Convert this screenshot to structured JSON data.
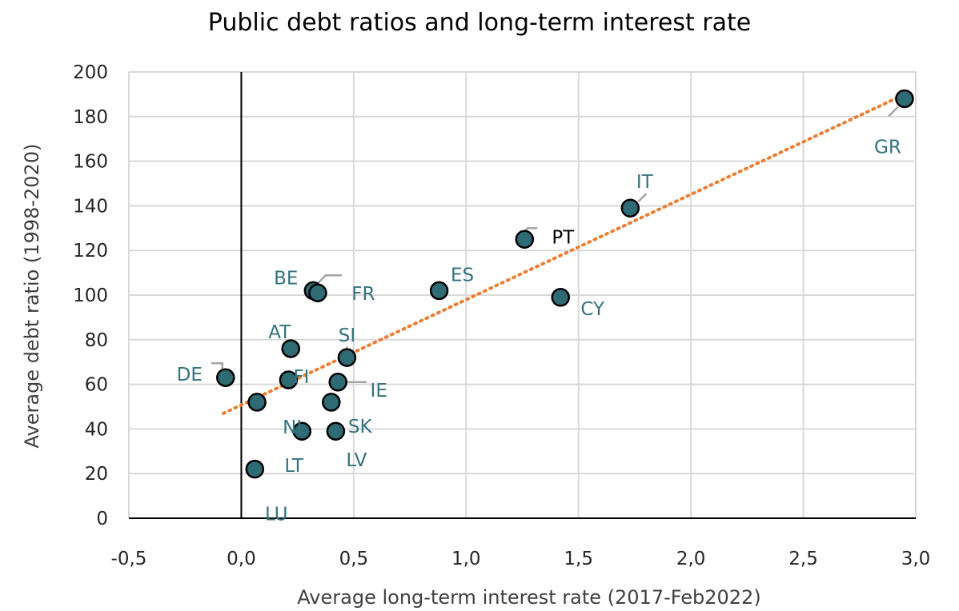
{
  "chart_data": {
    "type": "scatter",
    "title": "Public debt ratios and long-term interest rate",
    "xlabel": "Average long-term interest rate (2017-Feb2022)",
    "ylabel": "Average debt ratio (1998-2020)",
    "xlim": [
      -0.5,
      3.0
    ],
    "ylim": [
      0,
      200
    ],
    "x_ticks": [
      -0.5,
      0.0,
      0.5,
      1.0,
      1.5,
      2.0,
      2.5,
      3.0
    ],
    "x_tick_labels": [
      "-0,5",
      "0,0",
      "0,5",
      "1,0",
      "1,5",
      "2,0",
      "2,5",
      "3,0"
    ],
    "y_ticks": [
      0,
      20,
      40,
      60,
      80,
      100,
      120,
      140,
      160,
      180,
      200
    ],
    "y_tick_labels": [
      "0",
      "20",
      "40",
      "60",
      "80",
      "100",
      "120",
      "140",
      "160",
      "180",
      "200"
    ],
    "grid": true,
    "legend": "none",
    "points": [
      {
        "label": "DE",
        "x": -0.07,
        "y": 63
      },
      {
        "label": "NL",
        "x": 0.07,
        "y": 52
      },
      {
        "label": "LU",
        "x": 0.06,
        "y": 22
      },
      {
        "label": "AT",
        "x": 0.22,
        "y": 76
      },
      {
        "label": "FI",
        "x": 0.21,
        "y": 62
      },
      {
        "label": "LT",
        "x": 0.27,
        "y": 39
      },
      {
        "label": "BE",
        "x": 0.32,
        "y": 102
      },
      {
        "label": "FR",
        "x": 0.34,
        "y": 101
      },
      {
        "label": "SK",
        "x": 0.4,
        "y": 52
      },
      {
        "label": "LV",
        "x": 0.42,
        "y": 39
      },
      {
        "label": "IE",
        "x": 0.43,
        "y": 61
      },
      {
        "label": "SI",
        "x": 0.47,
        "y": 72
      },
      {
        "label": "ES",
        "x": 0.88,
        "y": 102
      },
      {
        "label": "PT",
        "x": 1.26,
        "y": 125
      },
      {
        "label": "CY",
        "x": 1.42,
        "y": 99
      },
      {
        "label": "IT",
        "x": 1.73,
        "y": 139
      },
      {
        "label": "GR",
        "x": 2.95,
        "y": 188
      }
    ],
    "trendline": {
      "x": [
        -0.08,
        2.93
      ],
      "y": [
        47,
        189
      ]
    },
    "colors": {
      "marker_fill": "#2e6b75",
      "marker_stroke": "#000000",
      "label": "#34727d",
      "highlight_label": "#000000",
      "trend": "#ed7d31"
    }
  }
}
